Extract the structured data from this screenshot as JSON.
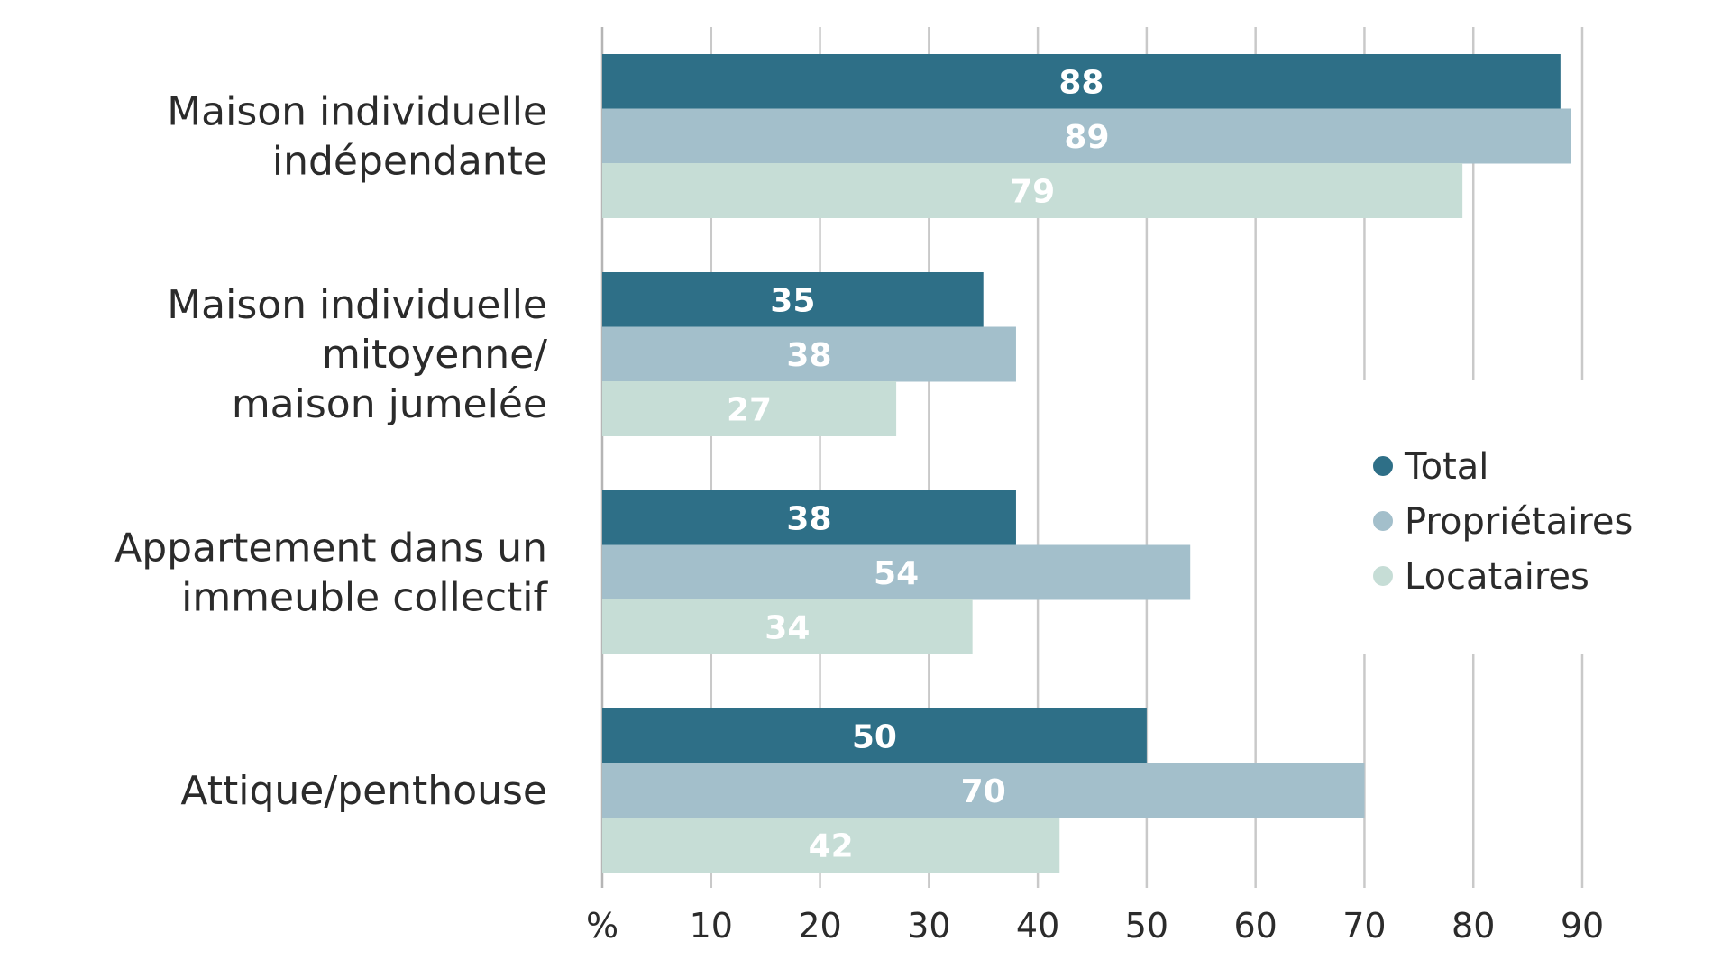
{
  "chart_data": {
    "type": "bar",
    "orientation": "horizontal",
    "categories": [
      [
        "Maison individuelle",
        "indépendante"
      ],
      [
        "Maison individuelle",
        "mitoyenne/",
        "maison jumelée"
      ],
      [
        "Appartement dans un",
        "immeuble collectif"
      ],
      [
        "Attique/penthouse"
      ]
    ],
    "series": [
      {
        "name": "Total",
        "values": [
          88,
          35,
          38,
          50
        ],
        "color": "#2e6f87"
      },
      {
        "name": "Propriétaires",
        "values": [
          89,
          38,
          54,
          70
        ],
        "color": "#a3bfcb"
      },
      {
        "name": "Locataires",
        "values": [
          79,
          27,
          34,
          42
        ],
        "color": "#c6ddd6"
      }
    ],
    "x_unit_label": "%",
    "x_ticks": [
      10,
      20,
      30,
      40,
      50,
      60,
      70,
      80,
      90
    ],
    "xlim": [
      0,
      90
    ],
    "grid": true,
    "legend_position": "right-middle",
    "title": "",
    "xlabel": "",
    "ylabel": ""
  },
  "colors": {
    "grid": "#c9c9c9",
    "axis": "#b5b5b5",
    "text": "#2b2b2b",
    "value_text": "#ffffff"
  }
}
